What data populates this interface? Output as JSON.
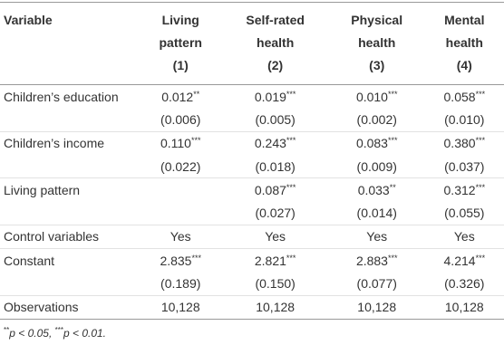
{
  "table": {
    "columns": [
      {
        "label": "Variable"
      },
      {
        "label": [
          "Living",
          "pattern"
        ],
        "number": "(1)"
      },
      {
        "label": [
          "Self-rated",
          "health"
        ],
        "number": "(2)"
      },
      {
        "label": [
          "Physical",
          "health"
        ],
        "number": "(3)"
      },
      {
        "label": [
          "Mental",
          "health"
        ],
        "number": "(4)"
      }
    ],
    "rows": [
      {
        "label": "Children’s education",
        "cells": [
          {
            "value": "0.012",
            "stars": "**"
          },
          {
            "value": "0.019",
            "stars": "***"
          },
          {
            "value": "0.010",
            "stars": "***"
          },
          {
            "value": "0.058",
            "stars": "***"
          }
        ]
      },
      {
        "label": null,
        "cells": [
          "(0.006)",
          "(0.005)",
          "(0.002)",
          "(0.010)"
        ]
      },
      {
        "label": "Children’s income",
        "cells": [
          {
            "value": "0.110",
            "stars": "***"
          },
          {
            "value": "0.243",
            "stars": "***"
          },
          {
            "value": "0.083",
            "stars": "***"
          },
          {
            "value": "0.380",
            "stars": "***"
          }
        ]
      },
      {
        "label": null,
        "cells": [
          "(0.022)",
          "(0.018)",
          "(0.009)",
          "(0.037)"
        ]
      },
      {
        "label": "Living pattern",
        "cells": [
          null,
          {
            "value": "0.087",
            "stars": "***"
          },
          {
            "value": "0.033",
            "stars": "**"
          },
          {
            "value": "0.312",
            "stars": "***"
          }
        ]
      },
      {
        "label": null,
        "cells": [
          null,
          "(0.027)",
          "(0.014)",
          "(0.055)"
        ]
      },
      {
        "label": "Control variables",
        "cells": [
          "Yes",
          "Yes",
          "Yes",
          "Yes"
        ]
      },
      {
        "label": "Constant",
        "cells": [
          {
            "value": "2.835",
            "stars": "***"
          },
          {
            "value": "2.821",
            "stars": "***"
          },
          {
            "value": "2.883",
            "stars": "***"
          },
          {
            "value": "4.214",
            "stars": "***"
          }
        ]
      },
      {
        "label": null,
        "cells": [
          "(0.189)",
          "(0.150)",
          "(0.077)",
          "(0.326)"
        ]
      },
      {
        "label": "Observations",
        "cells": [
          "10,128",
          "10,128",
          "10,128",
          "10,128"
        ]
      }
    ],
    "footnote": [
      {
        "sup": "**",
        "text": "p < 0.05,"
      },
      {
        "sup": "***",
        "text": "p < 0.01."
      }
    ]
  }
}
